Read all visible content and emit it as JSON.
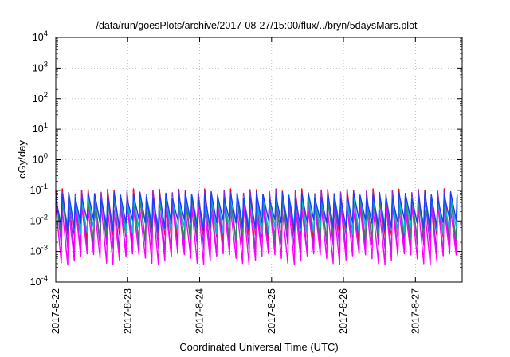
{
  "chart_data": {
    "type": "line",
    "title": "/data/run/goesPlots/archive/2017-08-27/15:00/flux/../bryn/5daysMars.plot",
    "xlabel": "Coordinated Universal Time (UTC)",
    "ylabel": "cGy/day",
    "yscale": "log",
    "ylim": [
      0.0001,
      10000
    ],
    "y_ticks": [
      {
        "base": "10",
        "exp": "-4"
      },
      {
        "base": "10",
        "exp": "-3"
      },
      {
        "base": "10",
        "exp": "-2"
      },
      {
        "base": "10",
        "exp": "-1"
      },
      {
        "base": "10",
        "exp": "0"
      },
      {
        "base": "10",
        "exp": "1"
      },
      {
        "base": "10",
        "exp": "2"
      },
      {
        "base": "10",
        "exp": "3"
      },
      {
        "base": "10",
        "exp": "4"
      }
    ],
    "x_ticks": [
      "2017-8-22",
      "2017-8-23",
      "2017-8-24",
      "2017-8-25",
      "2017-8-26",
      "2017-8-27"
    ],
    "xlim_days": [
      0,
      5.65
    ],
    "grid": true,
    "sawtooth_period_days": 0.09,
    "series": [
      {
        "color": "#ff0000",
        "peak": 0.09,
        "trough": 0.0025
      },
      {
        "color": "#8a2be2",
        "peak": 0.08,
        "trough": 0.0012
      },
      {
        "color": "#ff00ff",
        "peak": 0.03,
        "trough": 0.0006
      },
      {
        "color": "#2e8b57",
        "peak": 0.05,
        "trough": 0.004
      },
      {
        "color": "#00bcd4",
        "peak": 0.06,
        "trough": 0.006
      },
      {
        "color": "#1e3cff",
        "peak": 0.07,
        "trough": 0.008
      }
    ]
  }
}
